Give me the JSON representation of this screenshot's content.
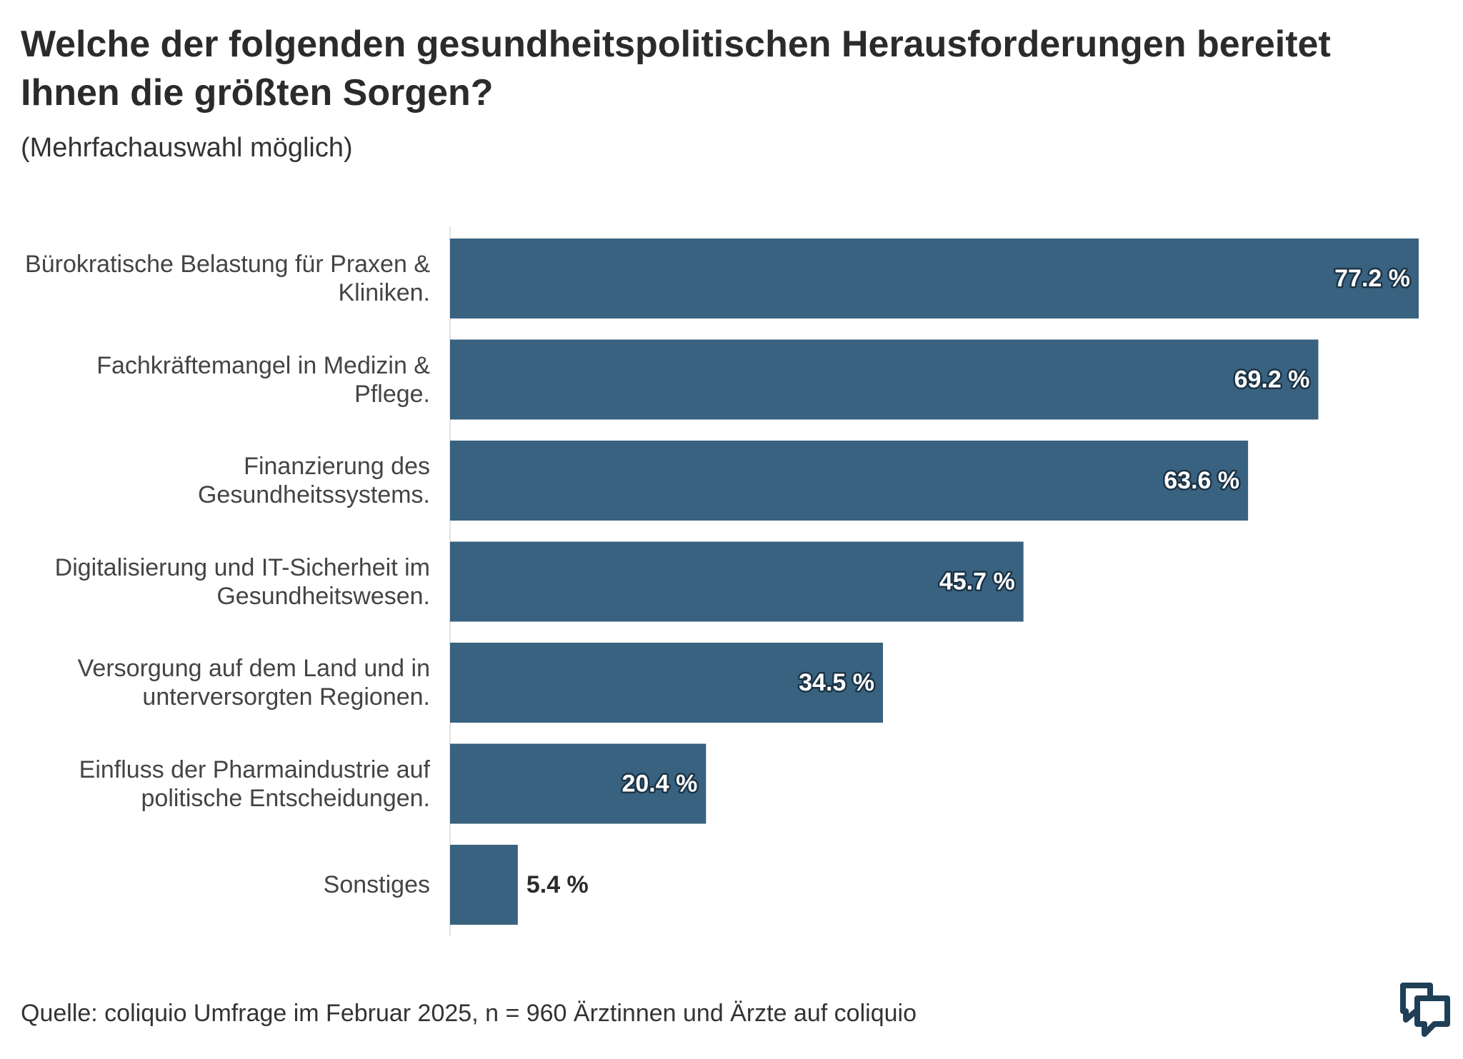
{
  "chart_data": {
    "type": "bar",
    "orientation": "horizontal",
    "title": "Welche der folgenden gesundheitspolitischen Herausforderungen bereitet Ihnen die größten Sorgen?",
    "subtitle": "(Mehrfachauswahl möglich)",
    "categories": [
      "Bürokratische Belastung für Praxen & Kliniken.",
      "Fachkräftemangel in Medizin & Pflege.",
      "Finanzierung des Gesundheitssystems.",
      "Digitalisierung und IT-Sicherheit im Gesundheitswesen.",
      "Versorgung auf dem Land und in unterversorgten Regionen.",
      "Einfluss der Pharmaindustrie auf politische Entscheidungen.",
      "Sonstiges"
    ],
    "values": [
      77.2,
      69.2,
      63.6,
      45.7,
      34.5,
      20.4,
      5.4
    ],
    "value_labels": [
      "77.2 %",
      "69.2 %",
      "63.6 %",
      "45.7 %",
      "34.5 %",
      "20.4 %",
      "5.4 %"
    ],
    "color": "#38627f",
    "source": "Quelle: coliquio Umfrage im Februar 2025, n = 960 Ärztinnen und Ärzte auf coliquio"
  }
}
